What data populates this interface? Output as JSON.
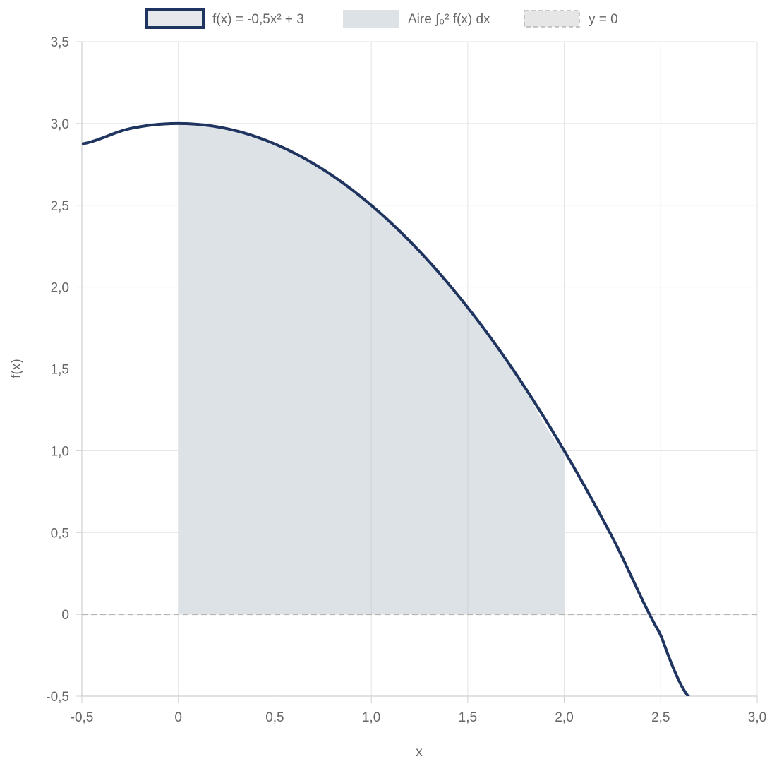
{
  "chart_data": {
    "type": "line",
    "title": "",
    "xlabel": "x",
    "ylabel": "f(x)",
    "xlim": [
      -0.5,
      3.0
    ],
    "ylim": [
      -0.5,
      3.5
    ],
    "x_ticks": [
      -0.5,
      0,
      0.5,
      1.0,
      1.5,
      2.0,
      2.5,
      3.0
    ],
    "x_tick_labels": [
      "-0,5",
      "0",
      "0,5",
      "1,0",
      "1,5",
      "2,0",
      "2,5",
      "3,0"
    ],
    "y_ticks": [
      -0.5,
      0,
      0.5,
      1.0,
      1.5,
      2.0,
      2.5,
      3.0,
      3.5
    ],
    "y_tick_labels": [
      "-0,5",
      "0",
      "0,5",
      "1,0",
      "1,5",
      "2,0",
      "2,5",
      "3,0",
      "3,5"
    ],
    "grid": true,
    "legend_position": "top-center",
    "series": [
      {
        "name": "f(x) = -0,5x² + 3",
        "kind": "line",
        "color": "#1f3560",
        "x": [
          -0.5,
          -0.25,
          0,
          0.25,
          0.5,
          0.75,
          1.0,
          1.25,
          1.5,
          1.75,
          2.0,
          2.25,
          2.5,
          2.65
        ],
        "y": [
          2.875,
          2.969,
          3.0,
          2.969,
          2.875,
          2.719,
          2.5,
          2.219,
          1.875,
          1.469,
          1.0,
          0.469,
          -0.125,
          -0.511
        ]
      },
      {
        "name": "Aire ∫₀² f(x) dx",
        "kind": "area",
        "color": "#dde2e7",
        "x": [
          0,
          0.25,
          0.5,
          0.75,
          1.0,
          1.25,
          1.5,
          1.75,
          2.0
        ],
        "y": [
          3.0,
          2.969,
          2.875,
          2.719,
          2.5,
          2.219,
          1.875,
          1.469,
          1.0
        ]
      },
      {
        "name": "y = 0",
        "kind": "dashed-line",
        "color": "#b5b5b5",
        "x": [
          -0.5,
          3.0
        ],
        "y": [
          0,
          0
        ]
      }
    ]
  }
}
